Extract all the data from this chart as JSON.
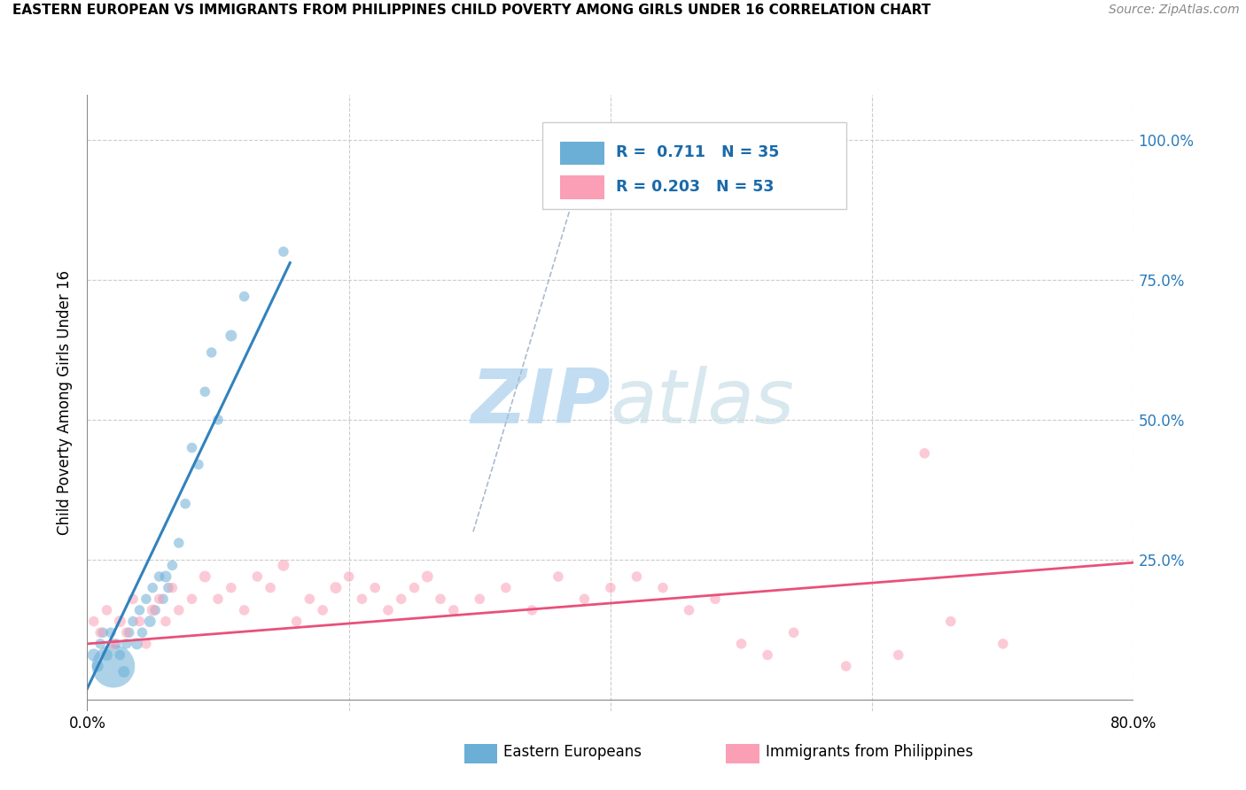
{
  "title": "EASTERN EUROPEAN VS IMMIGRANTS FROM PHILIPPINES CHILD POVERTY AMONG GIRLS UNDER 16 CORRELATION CHART",
  "source": "Source: ZipAtlas.com",
  "ylabel": "Child Poverty Among Girls Under 16",
  "xlim": [
    0.0,
    0.8
  ],
  "ylim": [
    -0.02,
    1.08
  ],
  "xticks": [
    0.0,
    0.2,
    0.4,
    0.6,
    0.8
  ],
  "xticklabels": [
    "0.0%",
    "",
    "",
    "",
    "80.0%"
  ],
  "yticks": [
    0.0,
    0.25,
    0.5,
    0.75,
    1.0
  ],
  "yticklabels": [
    "",
    "25.0%",
    "50.0%",
    "75.0%",
    "100.0%"
  ],
  "blue_R": 0.711,
  "blue_N": 35,
  "pink_R": 0.203,
  "pink_N": 53,
  "blue_color": "#6baed6",
  "pink_color": "#fa9fb5",
  "blue_line_color": "#3182bd",
  "pink_line_color": "#e8517a",
  "grid_color": "#cccccc",
  "watermark_color": "#cde8f5",
  "blue_line_x0": 0.0,
  "blue_line_y0": 0.02,
  "blue_line_x1": 0.155,
  "blue_line_y1": 0.78,
  "pink_line_x0": 0.0,
  "pink_line_y0": 0.1,
  "pink_line_x1": 0.8,
  "pink_line_y1": 0.245,
  "blue_scatter_x": [
    0.005,
    0.008,
    0.01,
    0.012,
    0.015,
    0.018,
    0.02,
    0.022,
    0.025,
    0.028,
    0.03,
    0.032,
    0.035,
    0.038,
    0.04,
    0.042,
    0.045,
    0.048,
    0.05,
    0.052,
    0.055,
    0.058,
    0.06,
    0.062,
    0.065,
    0.07,
    0.075,
    0.08,
    0.085,
    0.09,
    0.095,
    0.1,
    0.11,
    0.12,
    0.15
  ],
  "blue_scatter_y": [
    0.08,
    0.06,
    0.1,
    0.12,
    0.08,
    0.12,
    0.06,
    0.1,
    0.08,
    0.05,
    0.1,
    0.12,
    0.14,
    0.1,
    0.16,
    0.12,
    0.18,
    0.14,
    0.2,
    0.16,
    0.22,
    0.18,
    0.22,
    0.2,
    0.24,
    0.28,
    0.35,
    0.45,
    0.42,
    0.55,
    0.62,
    0.5,
    0.65,
    0.72,
    0.8
  ],
  "blue_scatter_size": [
    30,
    25,
    20,
    20,
    25,
    20,
    350,
    20,
    20,
    25,
    20,
    20,
    20,
    25,
    20,
    20,
    20,
    25,
    20,
    20,
    20,
    20,
    25,
    20,
    20,
    20,
    20,
    20,
    20,
    20,
    20,
    20,
    25,
    20,
    20
  ],
  "pink_scatter_x": [
    0.005,
    0.01,
    0.015,
    0.02,
    0.025,
    0.03,
    0.035,
    0.04,
    0.045,
    0.05,
    0.055,
    0.06,
    0.065,
    0.07,
    0.08,
    0.09,
    0.1,
    0.11,
    0.12,
    0.13,
    0.14,
    0.15,
    0.16,
    0.17,
    0.18,
    0.19,
    0.2,
    0.21,
    0.22,
    0.23,
    0.24,
    0.25,
    0.26,
    0.27,
    0.28,
    0.3,
    0.32,
    0.34,
    0.36,
    0.38,
    0.4,
    0.42,
    0.44,
    0.46,
    0.48,
    0.5,
    0.52,
    0.54,
    0.58,
    0.62,
    0.64,
    0.66,
    0.7
  ],
  "pink_scatter_y": [
    0.14,
    0.12,
    0.16,
    0.1,
    0.14,
    0.12,
    0.18,
    0.14,
    0.1,
    0.16,
    0.18,
    0.14,
    0.2,
    0.16,
    0.18,
    0.22,
    0.18,
    0.2,
    0.16,
    0.22,
    0.2,
    0.24,
    0.14,
    0.18,
    0.16,
    0.2,
    0.22,
    0.18,
    0.2,
    0.16,
    0.18,
    0.2,
    0.22,
    0.18,
    0.16,
    0.18,
    0.2,
    0.16,
    0.22,
    0.18,
    0.2,
    0.22,
    0.2,
    0.16,
    0.18,
    0.1,
    0.08,
    0.12,
    0.06,
    0.08,
    0.44,
    0.14,
    0.1
  ],
  "pink_scatter_size": [
    20,
    20,
    20,
    20,
    25,
    20,
    20,
    20,
    20,
    25,
    20,
    20,
    20,
    20,
    20,
    25,
    20,
    20,
    20,
    20,
    20,
    25,
    20,
    20,
    20,
    25,
    20,
    20,
    20,
    20,
    20,
    20,
    25,
    20,
    20,
    20,
    20,
    20,
    20,
    20,
    20,
    20,
    20,
    20,
    20,
    20,
    20,
    20,
    20,
    20,
    20,
    20,
    20
  ]
}
